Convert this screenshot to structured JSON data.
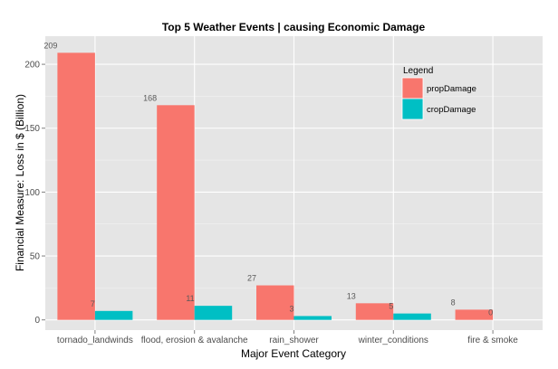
{
  "chart_data": {
    "type": "bar",
    "title": "Top 5 Weather Events | causing Economic Damage",
    "xlabel": "Major Event Category",
    "ylabel": "Financial Measure: Loss in $ (Billion)",
    "categories": [
      "tornado_landwinds",
      "flood, erosion & avalanche",
      "rain_shower",
      "winter_conditions",
      "fire & smoke"
    ],
    "series": [
      {
        "name": "propDamage",
        "color": "#F8766D",
        "values": [
          209,
          168,
          27,
          13,
          8
        ],
        "labels": [
          "209",
          "168",
          "27",
          "13",
          "8"
        ]
      },
      {
        "name": "cropDamage",
        "color": "#00BFC4",
        "values": [
          7,
          11,
          3,
          5,
          0
        ],
        "labels": [
          "7",
          "11",
          "3",
          "5",
          "0"
        ]
      }
    ],
    "ylim": [
      -8,
      222
    ],
    "yticks": [
      0,
      50,
      100,
      150,
      200
    ],
    "grid": true,
    "legend": {
      "title": "Legend",
      "position": "top-right"
    },
    "colors": {
      "panel": "#E5E5E5",
      "grid_major": "#FFFFFF",
      "grid_minor": "#F2F2F2"
    }
  }
}
